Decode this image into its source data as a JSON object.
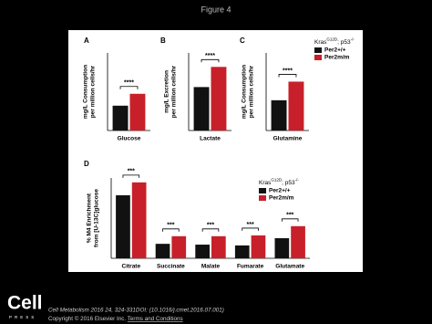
{
  "figure_title": "Figure 4",
  "chart_data": [
    {
      "type": "bar",
      "panel": "A",
      "ylabel": [
        "mg/L Consumption",
        "per million cells/hr"
      ],
      "categories": [
        "Glucose"
      ],
      "series": [
        {
          "color": "#111111",
          "values": [
            9.6
          ]
        },
        {
          "color": "#c8202a",
          "values": [
            14.2
          ]
        }
      ],
      "annotations": [
        "****"
      ],
      "ylim": [
        0,
        30
      ]
    },
    {
      "type": "bar",
      "panel": "B",
      "ylabel": [
        "mg/L Excretion",
        "per million cells/hr"
      ],
      "categories": [
        "Lactate"
      ],
      "series": [
        {
          "color": "#111111",
          "values": [
            28
          ]
        },
        {
          "color": "#c8202a",
          "values": [
            41
          ]
        }
      ],
      "annotations": [
        "****"
      ],
      "ylim": [
        0,
        50
      ]
    },
    {
      "type": "bar",
      "panel": "C",
      "ylabel": [
        "mg/L Consumption",
        "per million cells/hr"
      ],
      "categories": [
        "Glutamine"
      ],
      "series": [
        {
          "name": "Per2+/+",
          "color": "#111111",
          "values": [
            3.9
          ]
        },
        {
          "name": "Per2m/m",
          "color": "#c8202a",
          "values": [
            6.3
          ]
        }
      ],
      "annotations": [
        "****"
      ],
      "ylim": [
        0,
        10
      ],
      "legend": "right",
      "legend_title": [
        "Kras",
        "G12D",
        "; p53",
        "-/-"
      ]
    },
    {
      "type": "bar",
      "panel": "D",
      "ylabel": [
        "% M4 Enrichment",
        "from [U-13C]glucose"
      ],
      "categories": [
        "Citrate",
        "Succinate",
        "Malate",
        "Fumarate",
        "Glutamate"
      ],
      "series": [
        {
          "name": "Per2+/+",
          "color": "#111111",
          "values": [
            15.7,
            3.6,
            3.4,
            3.2,
            5.0
          ]
        },
        {
          "name": "Per2m/m",
          "color": "#c8202a",
          "values": [
            18.9,
            5.5,
            5.5,
            5.7,
            8.0
          ]
        }
      ],
      "annotations": [
        "***",
        "***",
        "***",
        "***",
        "***"
      ],
      "ylim": [
        0,
        20
      ],
      "legend": "upper right",
      "legend_title": [
        "Kras",
        "G12D",
        "; p53",
        "-/-"
      ]
    }
  ],
  "footer": {
    "citation": "Cell Metabolism 2016 24, 324-331DOI: (10.1016/j.cmet.2016.07.001)",
    "copyright": "Copyright © 2016 Elsevier Inc.",
    "link": "Terms and Conditions"
  },
  "logo": {
    "name": "Cell",
    "sub": "PRESS"
  }
}
